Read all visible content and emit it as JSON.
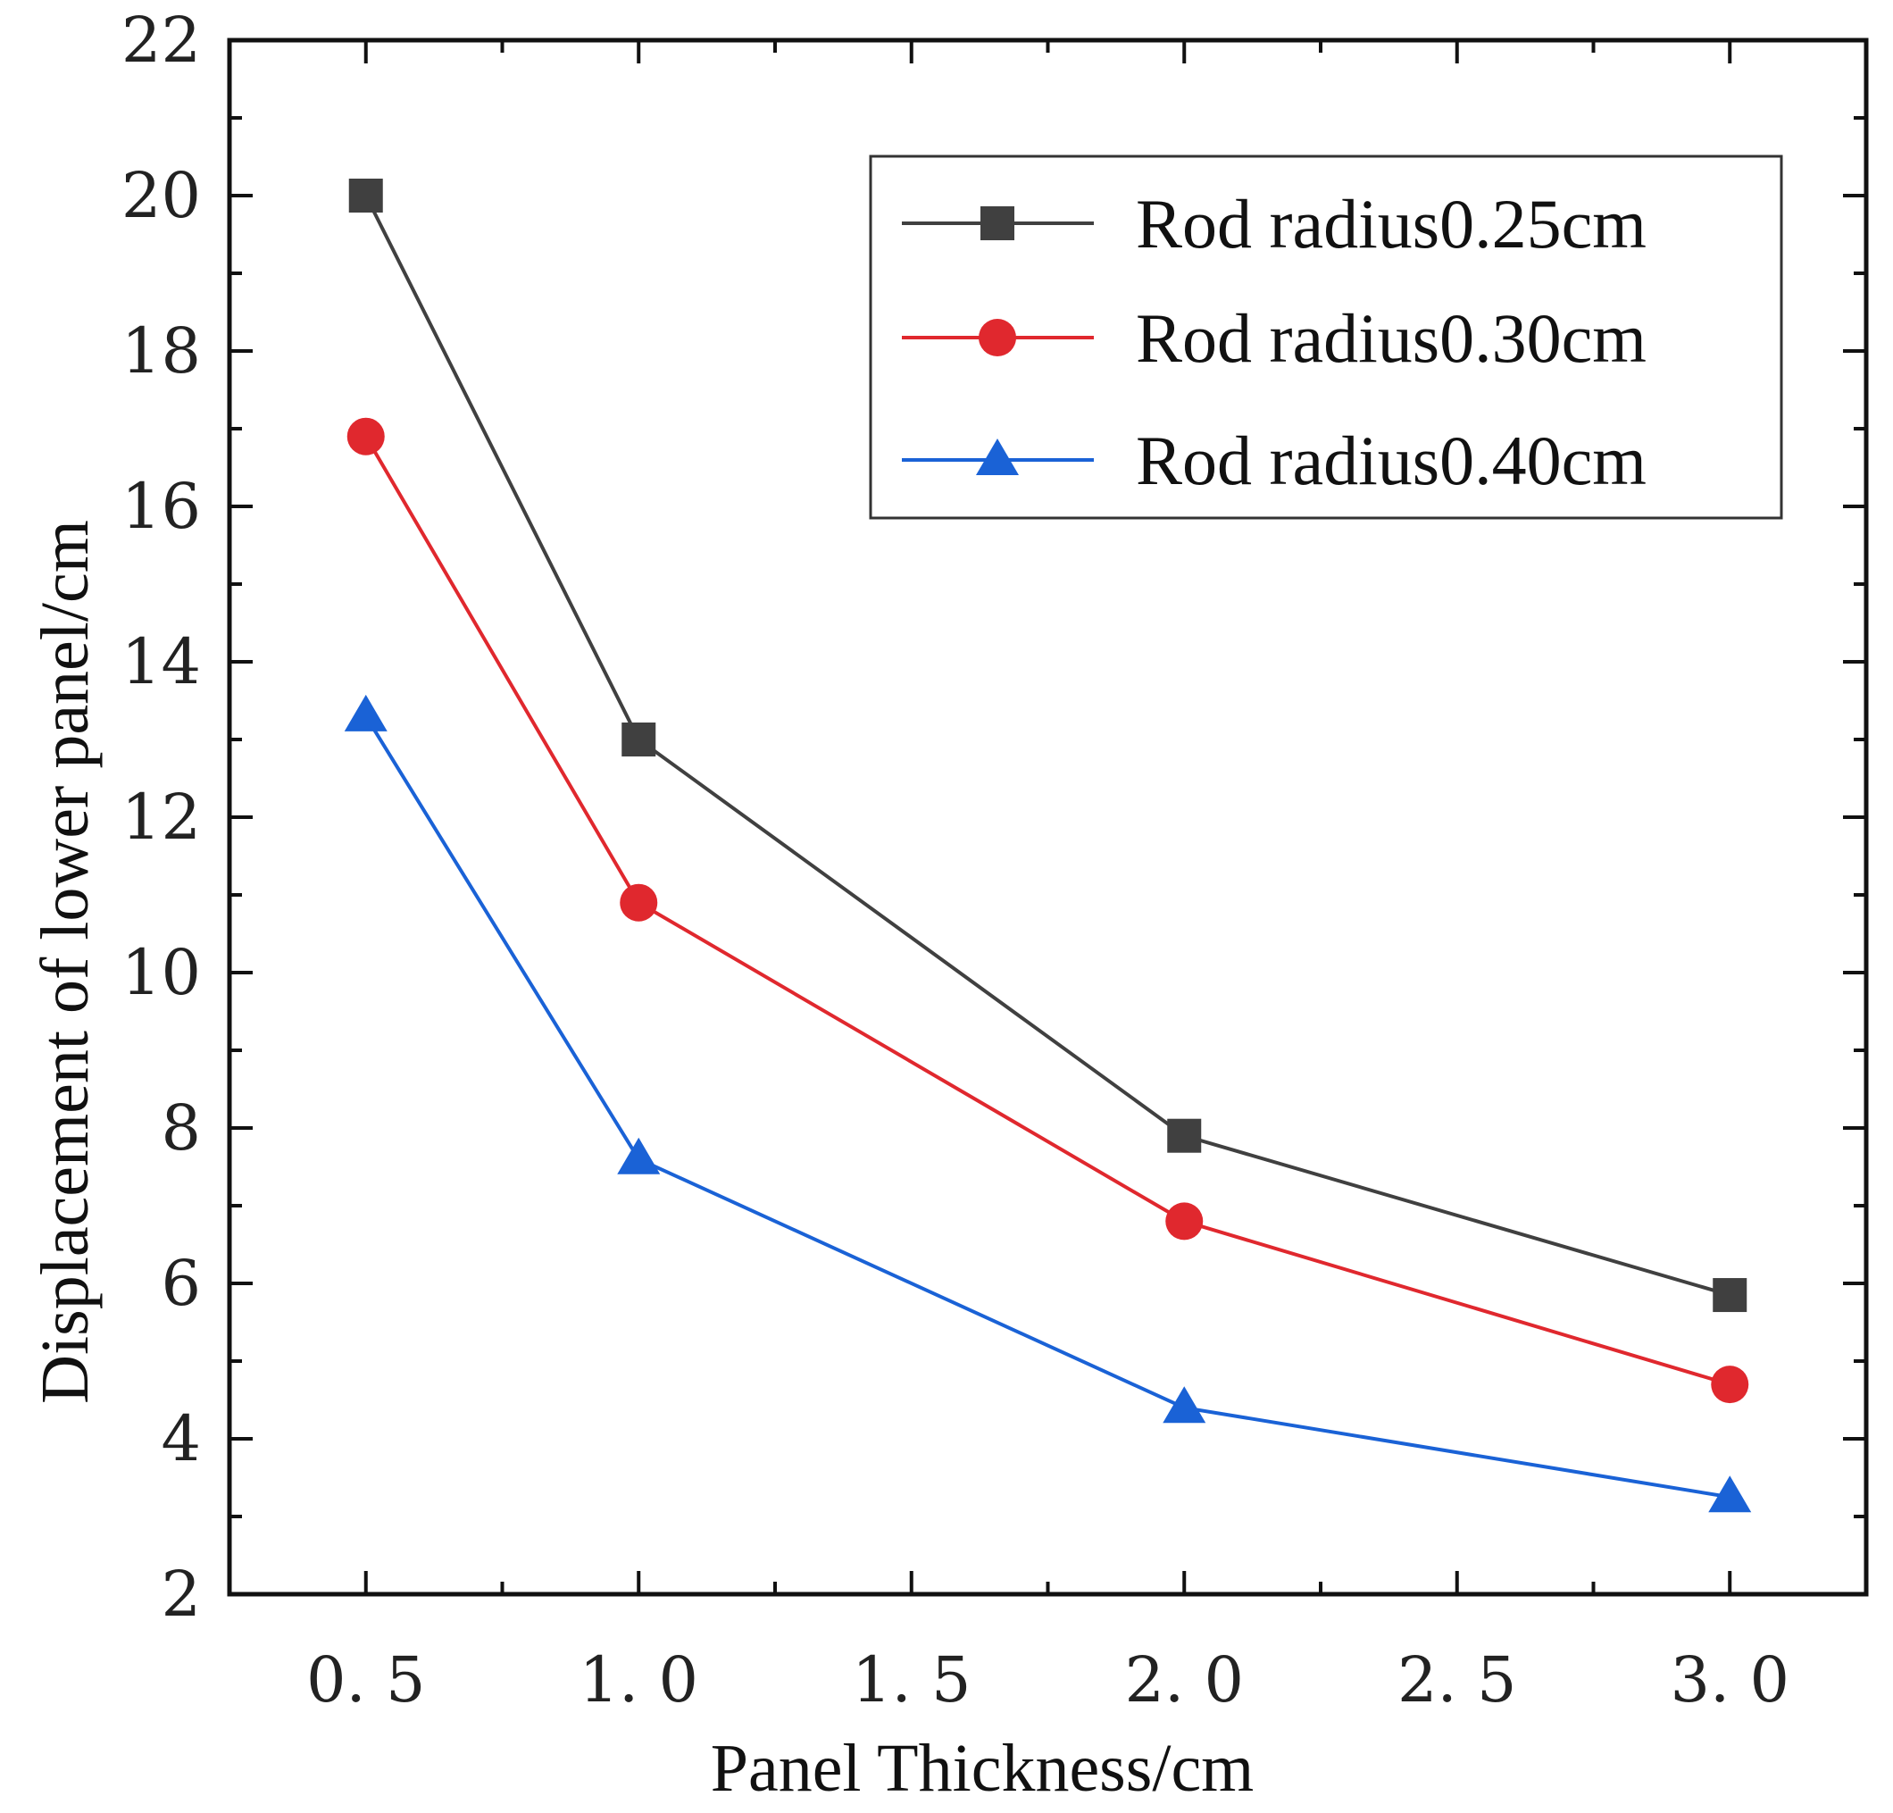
{
  "chart_data": {
    "type": "line",
    "title": "",
    "xlabel": "Panel Thickness/cm",
    "ylabel": "Displacement of lower panel/cm",
    "xlim": [
      0.25,
      3.25
    ],
    "ylim": [
      2,
      22
    ],
    "x_ticks": [
      0.5,
      1.0,
      1.5,
      2.0,
      2.5,
      3.0
    ],
    "x_tick_labels": [
      "0. 5",
      "1. 0",
      "1. 5",
      "2. 0",
      "2. 5",
      "3. 0"
    ],
    "y_ticks": [
      2,
      4,
      6,
      8,
      10,
      12,
      14,
      16,
      18,
      20,
      22
    ],
    "y_tick_labels": [
      "2",
      "4",
      "6",
      "8",
      "10",
      "12",
      "14",
      "16",
      "18",
      "20",
      "22"
    ],
    "grid": false,
    "legend_position": "top-right",
    "x": [
      0.5,
      1.0,
      2.0,
      3.0
    ],
    "series": [
      {
        "name": "Rod radius0.25cm",
        "color": "#404040",
        "marker": "square",
        "values": [
          20.0,
          13.0,
          7.9,
          5.85
        ]
      },
      {
        "name": "Rod radius0.30cm",
        "color": "#e0282e",
        "marker": "circle",
        "values": [
          16.9,
          10.9,
          6.8,
          4.7
        ]
      },
      {
        "name": "Rod radius0.40cm",
        "color": "#1a62d6",
        "marker": "triangle",
        "values": [
          13.3,
          7.6,
          4.4,
          3.25
        ]
      }
    ]
  }
}
